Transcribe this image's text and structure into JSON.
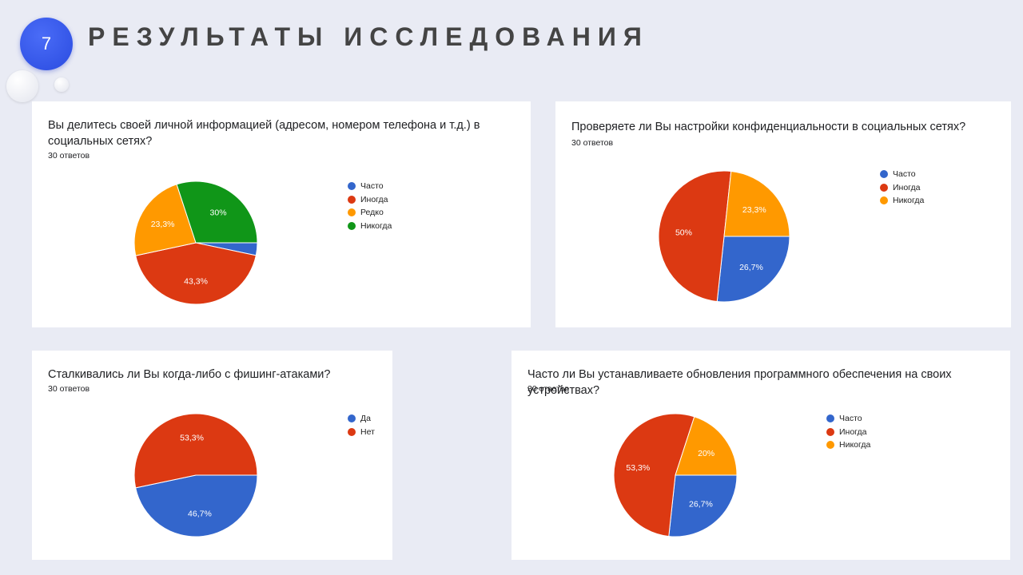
{
  "slide": {
    "number": "7",
    "title": "РЕЗУЛЬТАТЫ ИССЛЕДОВАНИЯ"
  },
  "colors": {
    "blue": "#3366cc",
    "red": "#dc3912",
    "orange": "#ff9900",
    "green": "#109618",
    "accent": "#2f55e8"
  },
  "chart_data": [
    {
      "type": "pie",
      "title": "Вы делитесь своей личной информацией (адресом, номером телефона и т.д.) в социальных сетях?",
      "responses": "30 ответов",
      "legend_position": "right",
      "slices": [
        {
          "name": "Часто",
          "value": 3.3,
          "color": "#3366cc",
          "label": ""
        },
        {
          "name": "Иногда",
          "value": 43.3,
          "color": "#dc3912",
          "label": "43,3%"
        },
        {
          "name": "Редко",
          "value": 23.3,
          "color": "#ff9900",
          "label": "23,3%"
        },
        {
          "name": "Никогда",
          "value": 30,
          "color": "#109618",
          "label": "30%"
        }
      ]
    },
    {
      "type": "pie",
      "title": "Проверяете ли Вы настройки конфиденциальности в социальных сетях?",
      "responses": "30 ответов",
      "legend_position": "right",
      "slices": [
        {
          "name": "Часто",
          "value": 26.7,
          "color": "#3366cc",
          "label": "26,7%"
        },
        {
          "name": "Иногда",
          "value": 50,
          "color": "#dc3912",
          "label": "50%"
        },
        {
          "name": "Никогда",
          "value": 23.3,
          "color": "#ff9900",
          "label": "23,3%"
        }
      ]
    },
    {
      "type": "pie",
      "title": "Сталкивались ли Вы когда-либо с фишинг-атаками?",
      "responses": "30 ответов",
      "legend_position": "right",
      "slices": [
        {
          "name": "Да",
          "value": 46.7,
          "color": "#3366cc",
          "label": "46,7%"
        },
        {
          "name": "Нет",
          "value": 53.3,
          "color": "#dc3912",
          "label": "53,3%"
        }
      ]
    },
    {
      "type": "pie",
      "title": "Часто ли Вы устанавливаете обновления программного обеспечения на своих устройствах?",
      "responses": "30 ответов",
      "legend_position": "right",
      "slices": [
        {
          "name": "Часто",
          "value": 26.7,
          "color": "#3366cc",
          "label": "26,7%"
        },
        {
          "name": "Иногда",
          "value": 53.3,
          "color": "#dc3912",
          "label": "53,3%"
        },
        {
          "name": "Никогда",
          "value": 20,
          "color": "#ff9900",
          "label": "20%"
        }
      ]
    }
  ]
}
